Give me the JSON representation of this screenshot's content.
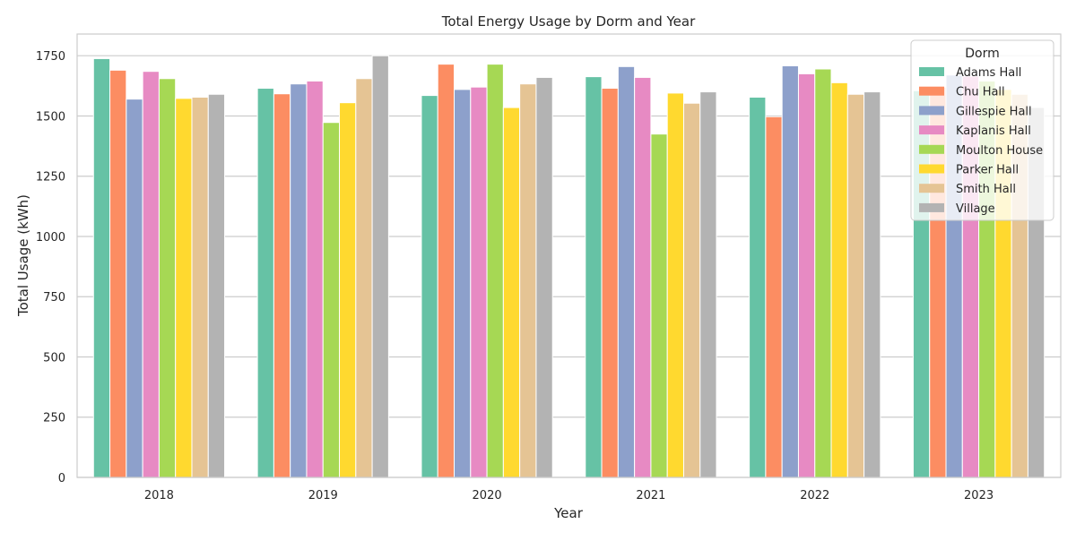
{
  "chart_data": {
    "type": "bar",
    "title": "Total Energy Usage by Dorm and Year",
    "xlabel": "Year",
    "ylabel": "Total Usage (kWh)",
    "ylim": [
      0,
      1840
    ],
    "yticks": [
      0,
      250,
      500,
      750,
      1000,
      1250,
      1500,
      1750
    ],
    "grid": true,
    "legend_title": "Dorm",
    "legend_position": "top-right",
    "categories": [
      "2018",
      "2019",
      "2020",
      "2021",
      "2022",
      "2023"
    ],
    "series": [
      {
        "name": "Adams Hall",
        "color": "#66c2a5",
        "values": [
          1738,
          1615,
          1585,
          1663,
          1578,
          1605
        ]
      },
      {
        "name": "Chu Hall",
        "color": "#fc8d62",
        "values": [
          1690,
          1592,
          1715,
          1615,
          1497,
          1620
        ]
      },
      {
        "name": "Gillespie Hall",
        "color": "#8da0cb",
        "values": [
          1570,
          1633,
          1610,
          1705,
          1708,
          1670
        ]
      },
      {
        "name": "Kaplanis Hall",
        "color": "#e78ac3",
        "values": [
          1685,
          1645,
          1620,
          1660,
          1675,
          1665
        ]
      },
      {
        "name": "Moulton House",
        "color": "#a6d854",
        "values": [
          1655,
          1473,
          1715,
          1425,
          1695,
          1645
        ]
      },
      {
        "name": "Parker Hall",
        "color": "#ffd92f",
        "values": [
          1573,
          1555,
          1535,
          1595,
          1638,
          1610
        ]
      },
      {
        "name": "Smith Hall",
        "color": "#e5c494",
        "values": [
          1578,
          1655,
          1633,
          1553,
          1590,
          1590
        ]
      },
      {
        "name": "Village",
        "color": "#b3b3b3",
        "values": [
          1590,
          1750,
          1660,
          1600,
          1600,
          1535
        ]
      }
    ]
  }
}
